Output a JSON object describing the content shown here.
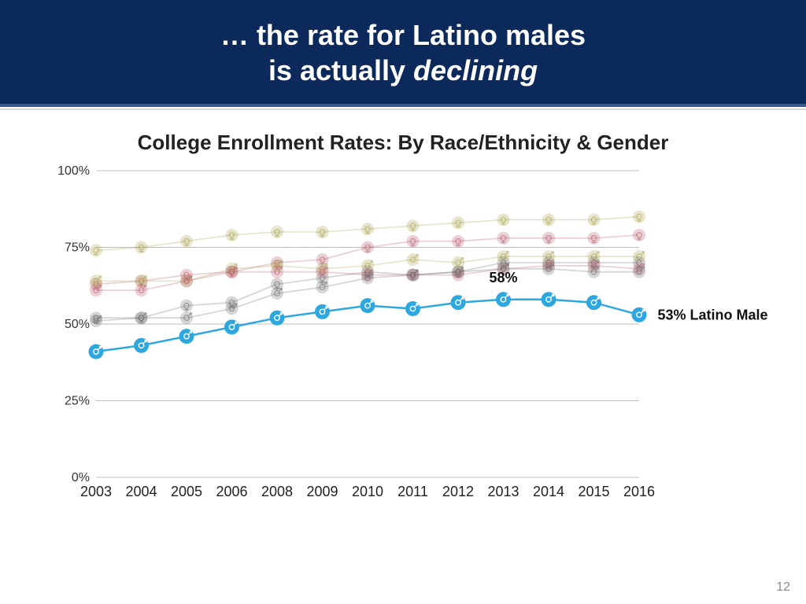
{
  "header": {
    "line1": "… the rate for Latino males",
    "line2_prefix": "is actually ",
    "line2_em": "declining"
  },
  "subtitle": "College Enrollment Rates: By Race/Ethnicity & Gender",
  "page_number": "12",
  "chart": {
    "type": "line",
    "xlabels": [
      "2003",
      "2004",
      "2005",
      "2006",
      "2008",
      "2009",
      "2010",
      "2011",
      "2012",
      "2013",
      "2014",
      "2015",
      "2016"
    ],
    "ylim": [
      0,
      100
    ],
    "yticks": [
      0,
      25,
      50,
      75,
      100
    ],
    "ytick_labels": [
      "0%",
      "25%",
      "50%",
      "75%",
      "100%"
    ],
    "grid_color": "#bfbfbf",
    "axis_tick_fontsize": 16,
    "xaxis_font": "condensed",
    "background_series_opacity": 0.28,
    "background_series": [
      {
        "color": "#a9a24a",
        "gender": "f",
        "values": [
          74,
          75,
          77,
          79,
          80,
          80,
          81,
          82,
          83,
          84,
          84,
          84,
          85
        ]
      },
      {
        "color": "#b85a6a",
        "gender": "f",
        "values": [
          63,
          64,
          66,
          67,
          70,
          71,
          75,
          77,
          77,
          78,
          78,
          78,
          79
        ]
      },
      {
        "color": "#a9a24a",
        "gender": "m",
        "values": [
          64,
          64,
          64,
          68,
          69,
          68,
          69,
          71,
          70,
          72,
          72,
          72,
          72
        ]
      },
      {
        "color": "#6b6b6b",
        "gender": "f",
        "values": [
          52,
          52,
          56,
          57,
          63,
          65,
          67,
          66,
          67,
          70,
          70,
          70,
          70
        ]
      },
      {
        "color": "#b85a6a",
        "gender": "m",
        "values": [
          61,
          61,
          64,
          67,
          67,
          67,
          66,
          66,
          66,
          68,
          69,
          69,
          68
        ]
      },
      {
        "color": "#6b6b6b",
        "gender": "m",
        "values": [
          51,
          52,
          52,
          55,
          60,
          62,
          65,
          66,
          67,
          68,
          68,
          67,
          67
        ]
      }
    ],
    "highlight_series": {
      "color": "#2ea7df",
      "gender": "m",
      "line_width": 2.5,
      "marker_radius": 9.5,
      "values": [
        41,
        43,
        46,
        49,
        52,
        54,
        56,
        55,
        57,
        58,
        58,
        57,
        53
      ],
      "peak_label": {
        "index": 9,
        "text": "58%",
        "dx": 0,
        "dy": -22
      },
      "end_label": {
        "text": "53% Latino Male",
        "dx": 8,
        "dy": 0
      }
    }
  }
}
